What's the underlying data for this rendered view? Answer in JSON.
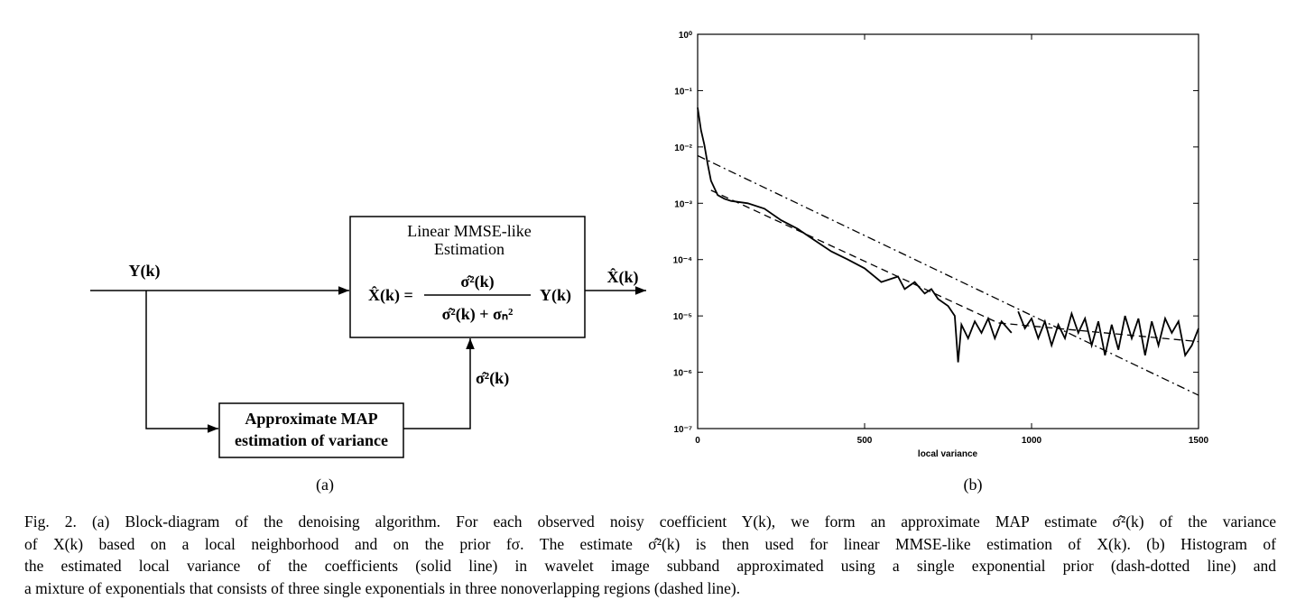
{
  "diagram": {
    "input": "Y(k)",
    "estimator_title": [
      "Linear MMSE-like",
      "Estimation"
    ],
    "formula": {
      "lhs": "X̂(k) =",
      "numerator": "σ̂²(k)",
      "denominator": "σ̂²(k) + σₙ²",
      "factor": "Y(k)"
    },
    "output": "X̂(k)",
    "variance_box": [
      "Approximate MAP",
      "estimation of variance"
    ],
    "feedback": "σ̂²(k)",
    "panel_label": "(a)"
  },
  "chart_data": {
    "type": "line",
    "panel_label": "(b)",
    "xlabel": "local variance",
    "xlim": [
      0,
      1500
    ],
    "xticks": [
      0,
      500,
      1000,
      1500
    ],
    "ylog": true,
    "ylim": [
      1e-07,
      1
    ],
    "yticks": [
      {
        "value": 1,
        "label": "10⁰"
      },
      {
        "value": 0.1,
        "label": "10⁻¹"
      },
      {
        "value": 0.01,
        "label": "10⁻²"
      },
      {
        "value": 0.001,
        "label": "10⁻³"
      },
      {
        "value": 0.0001,
        "label": "10⁻⁴"
      },
      {
        "value": 1e-05,
        "label": "10⁻⁵"
      },
      {
        "value": 1e-06,
        "label": "10⁻⁶"
      },
      {
        "value": 1e-07,
        "label": "10⁻⁷"
      }
    ],
    "series": [
      {
        "color": "#000000",
        "style": "solid",
        "x": [
          0,
          10,
          20,
          30,
          40,
          60,
          80,
          100,
          150,
          200,
          250,
          300,
          350,
          400,
          450,
          500,
          550,
          600,
          620,
          650,
          680,
          700,
          720,
          750,
          770,
          780,
          790,
          810,
          830,
          850,
          870,
          890,
          910,
          940,
          955,
          960,
          980,
          1000,
          1020,
          1040,
          1060,
          1080,
          1100,
          1120,
          1140,
          1160,
          1180,
          1200,
          1220,
          1240,
          1260,
          1280,
          1300,
          1320,
          1340,
          1360,
          1380,
          1400,
          1420,
          1440,
          1460,
          1480,
          1500
        ],
        "values": [
          0.05,
          0.02,
          0.011,
          0.005,
          0.0025,
          0.0014,
          0.0012,
          0.0011,
          0.001,
          0.0008,
          0.0005,
          0.00035,
          0.00022,
          0.00014,
          0.0001,
          7e-05,
          4e-05,
          5e-05,
          3e-05,
          4e-05,
          2.5e-05,
          3e-05,
          2e-05,
          1.5e-05,
          1e-05,
          1.5e-06,
          7e-06,
          4e-06,
          8e-06,
          5e-06,
          9e-06,
          4e-06,
          8e-06,
          5e-06,
          null,
          1.2e-05,
          6e-06,
          9e-06,
          4e-06,
          8e-06,
          3e-06,
          7e-06,
          4e-06,
          1.1e-05,
          5e-06,
          9e-06,
          3e-06,
          8e-06,
          2e-06,
          7e-06,
          2.5e-06,
          1e-05,
          4e-06,
          9e-06,
          2e-06,
          8e-06,
          3e-06,
          9e-06,
          5e-06,
          8e-06,
          2e-06,
          3e-06,
          6e-06
        ]
      },
      {
        "color": "#000000",
        "style": "dashdot",
        "x": [
          0,
          1500
        ],
        "values": [
          0.007,
          3.9e-07
        ]
      },
      {
        "color": "#000000",
        "style": "dashed",
        "x": [
          40,
          900,
          1500
        ],
        "values": [
          0.0017,
          7.5e-06,
          3.5e-06
        ]
      }
    ]
  },
  "caption": [
    "Fig. 2.   (a) Block-diagram of the denoising algorithm. For each observed noisy coefficient Y(k), we form an approximate MAP estimate σ̂²(k) of the variance",
    "of X(k) based on a local neighborhood and on the prior fσ. The estimate σ̂²(k) is then used for linear MMSE-like estimation of X(k). (b) Histogram of",
    "the estimated local variance of the coefficients (solid line) in wavelet image subband approximated using a single exponential prior (dash-dotted line) and",
    "a mixture of exponentials that consists of three single exponentials in three nonoverlapping regions (dashed line)."
  ]
}
